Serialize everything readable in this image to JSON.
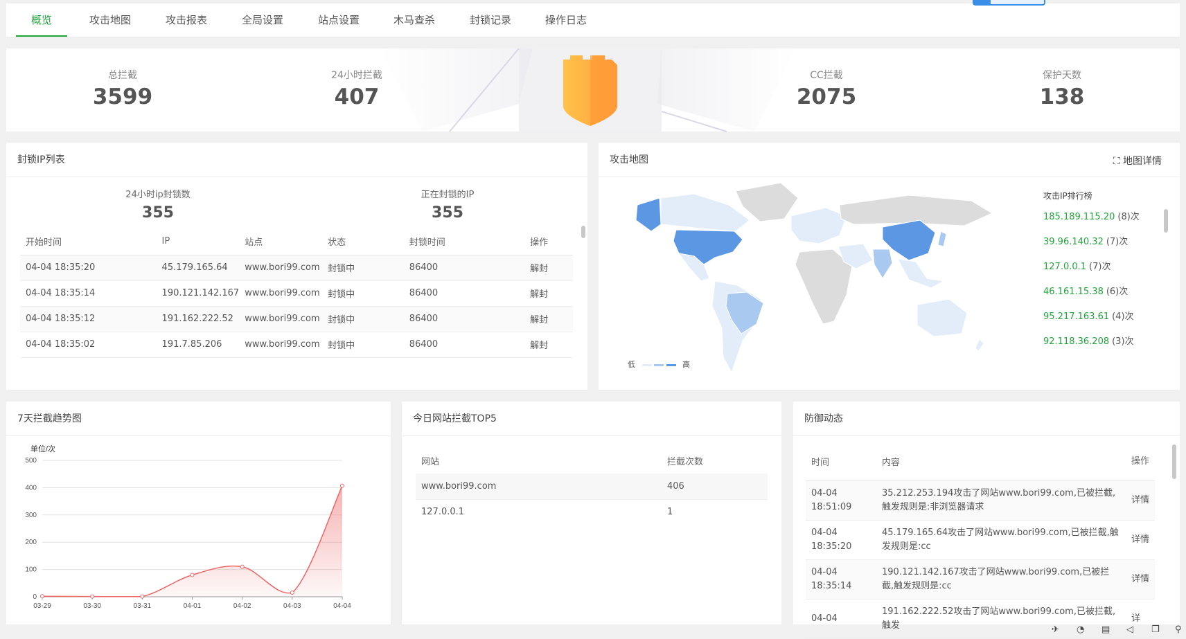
{
  "tabs": [
    "概览",
    "攻击地图",
    "攻击报表",
    "全局设置",
    "站点设置",
    "木马查杀",
    "封锁记录",
    "操作日志"
  ],
  "stats": [
    {
      "label": "总拦截",
      "value": "3599"
    },
    {
      "label": "24小时拦截",
      "value": "407"
    },
    {
      "label": "CC拦截",
      "value": "2075"
    },
    {
      "label": "保护天数",
      "value": "138"
    }
  ],
  "blocked": {
    "title": "封锁IP列表",
    "count24_label": "24小时ip封锁数",
    "count24": "355",
    "current_label": "正在封锁的IP",
    "current": "355",
    "headers": [
      "开始时间",
      "IP",
      "站点",
      "状态",
      "封锁时间",
      "操作"
    ],
    "rows": [
      {
        "time": "04-04 18:35:20",
        "ip": "45.179.165.64",
        "site": "www.bori99.com",
        "status": "封锁中",
        "duration": "86400",
        "action": "解封"
      },
      {
        "time": "04-04 18:35:14",
        "ip": "190.121.142.167",
        "site": "www.bori99.com",
        "status": "封锁中",
        "duration": "86400",
        "action": "解封"
      },
      {
        "time": "04-04 18:35:12",
        "ip": "191.162.222.52",
        "site": "www.bori99.com",
        "status": "封锁中",
        "duration": "86400",
        "action": "解封"
      },
      {
        "time": "04-04 18:35:02",
        "ip": "191.7.85.206",
        "site": "www.bori99.com",
        "status": "封锁中",
        "duration": "86400",
        "action": "解封"
      }
    ]
  },
  "map": {
    "title": "攻击地图",
    "detail_label": "地图详情",
    "rank_title": "攻击IP排行榜",
    "ranks": [
      {
        "ip": "185.189.115.20",
        "count": "(8)次"
      },
      {
        "ip": "39.96.140.32",
        "count": "(7)次"
      },
      {
        "ip": "127.0.0.1",
        "count": "(7)次"
      },
      {
        "ip": "46.161.15.38",
        "count": "(6)次"
      },
      {
        "ip": "95.217.163.61",
        "count": "(4)次"
      },
      {
        "ip": "92.118.36.208",
        "count": "(3)次"
      }
    ],
    "legend_low": "低",
    "legend_high": "高",
    "colors": {
      "high": "#5b97e2",
      "mid": "#a9c9f0",
      "low": "#e3edf9",
      "none": "#dcdcdc"
    }
  },
  "trend": {
    "title": "7天拦截趋势图"
  },
  "chart_data": {
    "type": "line",
    "title": "",
    "ylabel": "单位/次",
    "xlabel": "",
    "categories": [
      "03-29",
      "03-30",
      "03-31",
      "04-01",
      "04-02",
      "04-03",
      "04-04"
    ],
    "values": [
      2,
      1,
      1,
      80,
      110,
      15,
      407
    ],
    "ylim": [
      0,
      500
    ],
    "yticks": [
      0,
      100,
      200,
      300,
      400,
      500
    ],
    "color": "#ee6666",
    "grid": true
  },
  "top5": {
    "title": "今日网站拦截TOP5",
    "headers": [
      "网站",
      "拦截次数"
    ],
    "rows": [
      {
        "site": "www.bori99.com",
        "count": "406"
      },
      {
        "site": "127.0.0.1",
        "count": "1"
      }
    ]
  },
  "defense": {
    "title": "防御动态",
    "headers": [
      "时间",
      "内容",
      "操作"
    ],
    "rows": [
      {
        "date": "04-04",
        "time": "18:51:09",
        "content": "35.212.253.194攻击了网站www.bori99.com,已被拦截,触发规则是:非浏览器请求",
        "action": "详情"
      },
      {
        "date": "04-04",
        "time": "18:35:20",
        "content": "45.179.165.64攻击了网站www.bori99.com,已被拦截,触发规则是:cc",
        "action": "详情"
      },
      {
        "date": "04-04",
        "time": "18:35:14",
        "content": "190.121.142.167攻击了网站www.bori99.com,已被拦截,触发规则是:cc",
        "action": "详情"
      },
      {
        "date": "04-04",
        "time": "",
        "content": "191.162.222.52攻击了网站www.bori99.com,已被拦截,触发",
        "action": "详"
      }
    ]
  }
}
